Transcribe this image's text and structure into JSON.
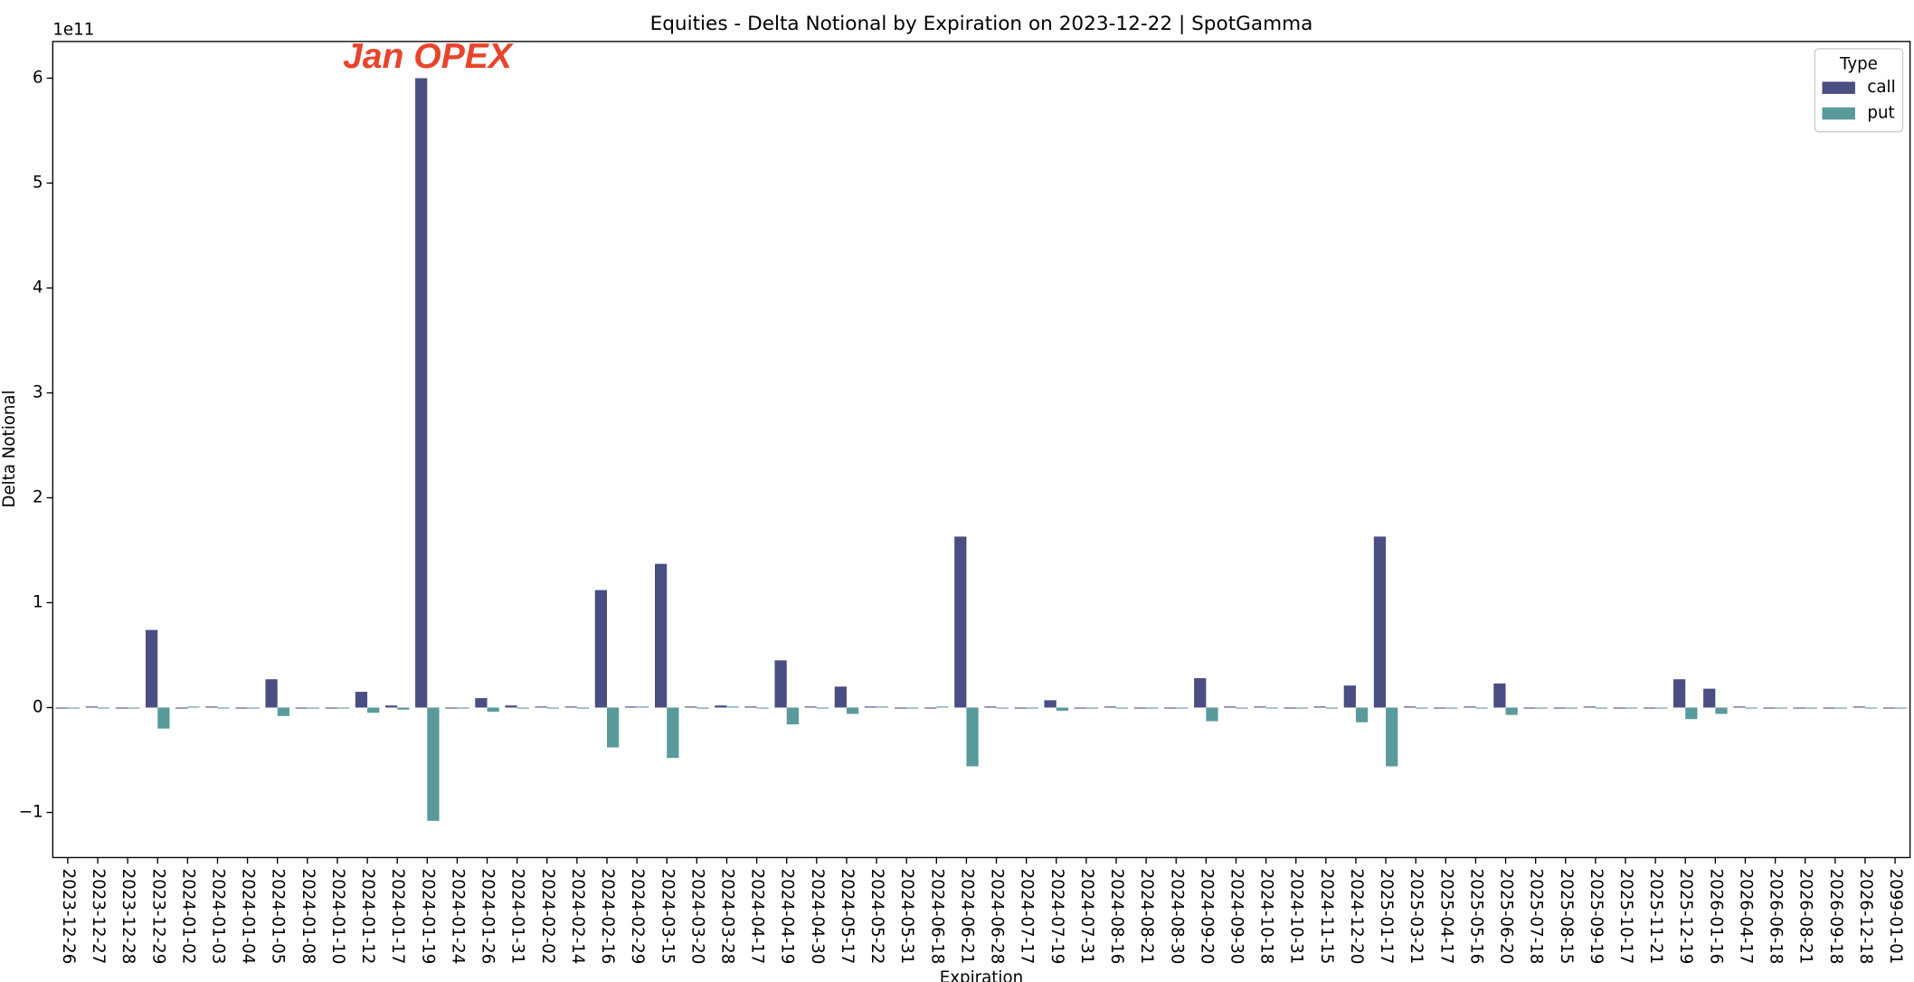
{
  "chart_data": {
    "type": "bar",
    "title": "Equities - Delta Notional by Expiration on 2023-12-22 | SpotGamma",
    "x_label": "Expiration",
    "y_label": "Delta Notional",
    "y_offset": "1e11",
    "annotation": "Jan OPEX",
    "legend_title": "Type",
    "legend_position": "upper right",
    "categories": [
      "2023-12-26",
      "2023-12-27",
      "2023-12-28",
      "2023-12-29",
      "2024-01-02",
      "2024-01-03",
      "2024-01-04",
      "2024-01-05",
      "2024-01-08",
      "2024-01-10",
      "2024-01-12",
      "2024-01-17",
      "2024-01-19",
      "2024-01-24",
      "2024-01-26",
      "2024-01-31",
      "2024-02-02",
      "2024-02-14",
      "2024-02-16",
      "2024-02-29",
      "2024-03-15",
      "2024-03-20",
      "2024-03-28",
      "2024-04-17",
      "2024-04-19",
      "2024-04-30",
      "2024-05-17",
      "2024-05-22",
      "2024-05-31",
      "2024-06-18",
      "2024-06-21",
      "2024-06-28",
      "2024-07-17",
      "2024-07-19",
      "2024-07-31",
      "2024-08-16",
      "2024-08-21",
      "2024-08-30",
      "2024-09-20",
      "2024-09-30",
      "2024-10-18",
      "2024-10-31",
      "2024-11-15",
      "2024-12-20",
      "2025-01-17",
      "2025-03-21",
      "2025-04-17",
      "2025-05-16",
      "2025-06-20",
      "2025-07-18",
      "2025-08-15",
      "2025-09-19",
      "2025-10-17",
      "2025-11-21",
      "2025-12-19",
      "2026-01-16",
      "2026-04-17",
      "2026-06-18",
      "2026-08-21",
      "2026-09-18",
      "2026-12-18",
      "2099-01-01"
    ],
    "series": [
      {
        "name": "call",
        "color": "#4a4e82",
        "values": [
          0,
          0.01,
          0,
          0.74,
          0,
          0.01,
          0,
          0.27,
          0,
          0,
          0.15,
          0.02,
          6.0,
          0,
          0.09,
          0.02,
          0.01,
          0.01,
          1.12,
          0.01,
          1.37,
          0.01,
          0.02,
          0.01,
          0.45,
          0.01,
          0.2,
          0.01,
          0,
          0,
          1.63,
          0.01,
          0,
          0.07,
          0,
          0.01,
          0,
          0,
          0.28,
          0.01,
          0.01,
          0,
          0.01,
          0.21,
          1.63,
          0.01,
          0,
          0.01,
          0.23,
          0,
          0,
          0.01,
          0,
          0,
          0.27,
          0.18,
          0.01,
          0,
          0,
          0,
          0.01,
          0
        ]
      },
      {
        "name": "put",
        "color": "#5a9a9b",
        "values": [
          0,
          0,
          0,
          -0.2,
          0.01,
          0,
          0,
          -0.08,
          0,
          0,
          -0.05,
          -0.02,
          -1.08,
          0,
          -0.04,
          0,
          0,
          -0.01,
          -0.38,
          0.01,
          -0.48,
          -0.01,
          0.01,
          0,
          -0.16,
          0,
          -0.06,
          0.01,
          0,
          0.01,
          -0.56,
          0,
          0,
          -0.03,
          0,
          0,
          0,
          0,
          -0.13,
          0,
          0,
          0,
          0,
          -0.14,
          -0.56,
          0,
          0,
          0,
          -0.07,
          0,
          0,
          0,
          0,
          0,
          -0.11,
          -0.06,
          0,
          0,
          0,
          0,
          0,
          0
        ]
      }
    ],
    "ylim": [
      -1.43,
      6.35
    ],
    "yticks": [
      {
        "value": -1,
        "label": "−1"
      },
      0,
      1,
      2,
      3,
      4,
      5,
      6
    ]
  }
}
